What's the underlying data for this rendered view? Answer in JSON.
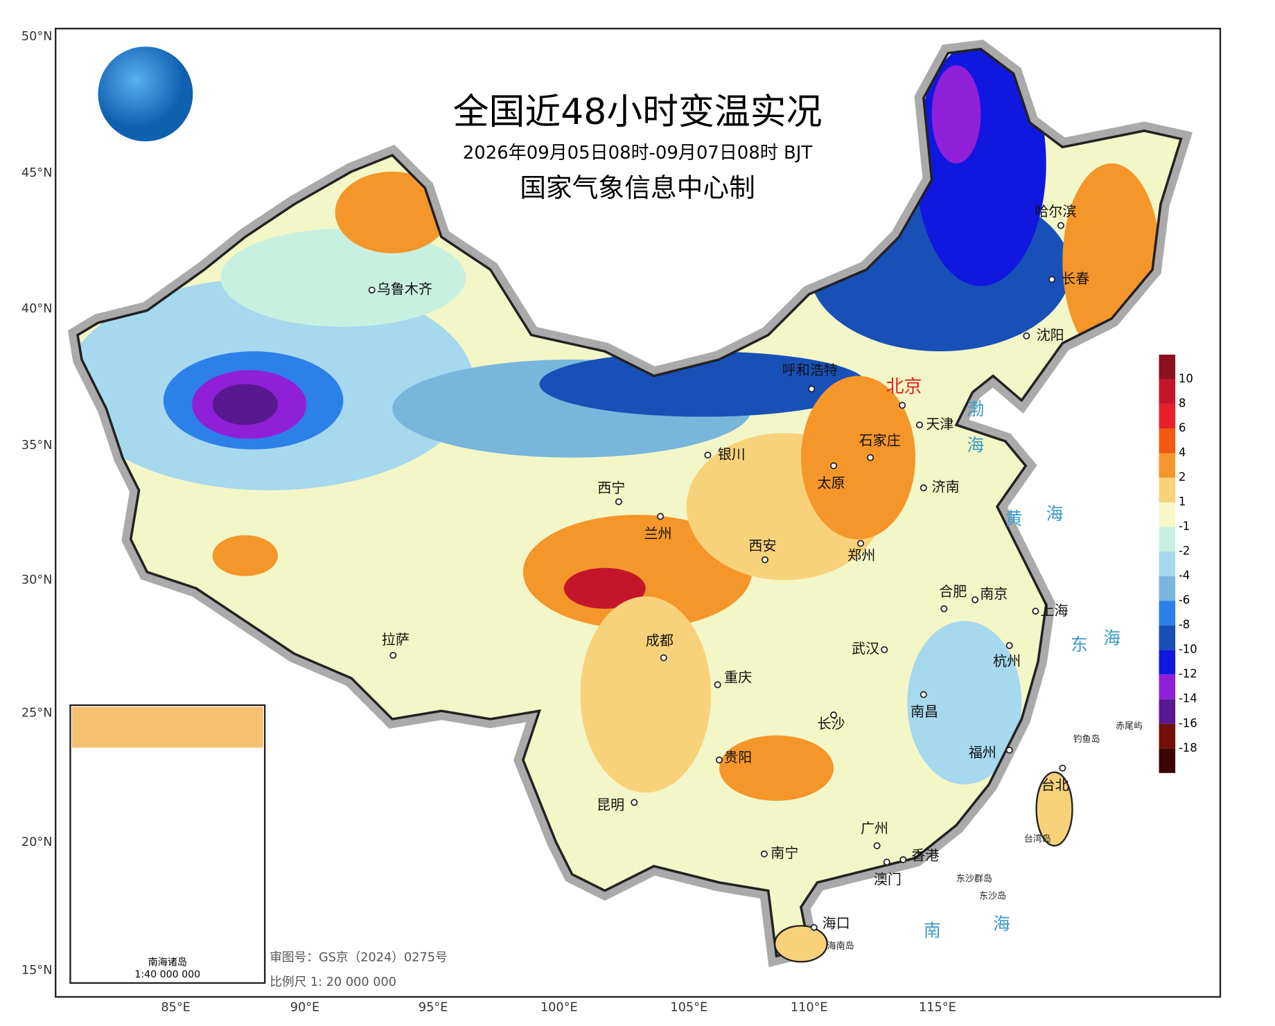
{
  "header": {
    "title": "全国近48小时变温实况",
    "subtitle": "2026年09月05日08时-09月07日08时 BJT",
    "producer": "国家气象信息中心制"
  },
  "axes": {
    "latitude": [
      "50°N",
      "45°N",
      "40°N",
      "35°N",
      "30°N",
      "25°N",
      "20°N",
      "15°N"
    ],
    "longitude": [
      "85°E",
      "90°E",
      "95°E",
      "100°E",
      "105°E",
      "110°E",
      "115°E"
    ]
  },
  "legend": {
    "labels": [
      "10",
      "8",
      "6",
      "4",
      "2",
      "1",
      "-1",
      "-2",
      "-4",
      "-6",
      "-8",
      "-10",
      "-12",
      "-14",
      "-16",
      "-18"
    ],
    "colors": [
      "#8c1020",
      "#c4162a",
      "#e8202a",
      "#f25a10",
      "#f5962a",
      "#f8d27a",
      "#f7f7c8",
      "#c8f0e0",
      "#a6d8ee",
      "#78b6dc",
      "#2c80e8",
      "#1850b8",
      "#1018e0",
      "#9020d8",
      "#581890",
      "#701008",
      "#3c0404"
    ]
  },
  "cities": [
    "乌鲁木齐",
    "呼和浩特",
    "北京",
    "天津",
    "石家庄",
    "银川",
    "太原",
    "济南",
    "西宁",
    "兰州",
    "西安",
    "郑州",
    "拉萨",
    "成都",
    "合肥",
    "南京",
    "上海",
    "武汉",
    "杭州",
    "重庆",
    "南昌",
    "长沙",
    "贵阳",
    "福州",
    "台北",
    "昆明",
    "广州",
    "南宁",
    "香港",
    "澳门",
    "海口",
    "哈尔滨",
    "长春",
    "沈阳"
  ],
  "seas": [
    "渤",
    "海",
    "黄",
    "海",
    "东",
    "海",
    "南",
    "海"
  ],
  "islands": [
    "钓鱼岛",
    "赤尾屿",
    "台湾岛",
    "东沙群岛",
    "东沙岛",
    "海南岛"
  ],
  "inset": {
    "title": "南海诸岛",
    "scale": "1:40 000 000"
  },
  "footer": {
    "review": "审图号：GS京（2024）0275号",
    "scale": "比例尺 1: 20 000 000"
  }
}
